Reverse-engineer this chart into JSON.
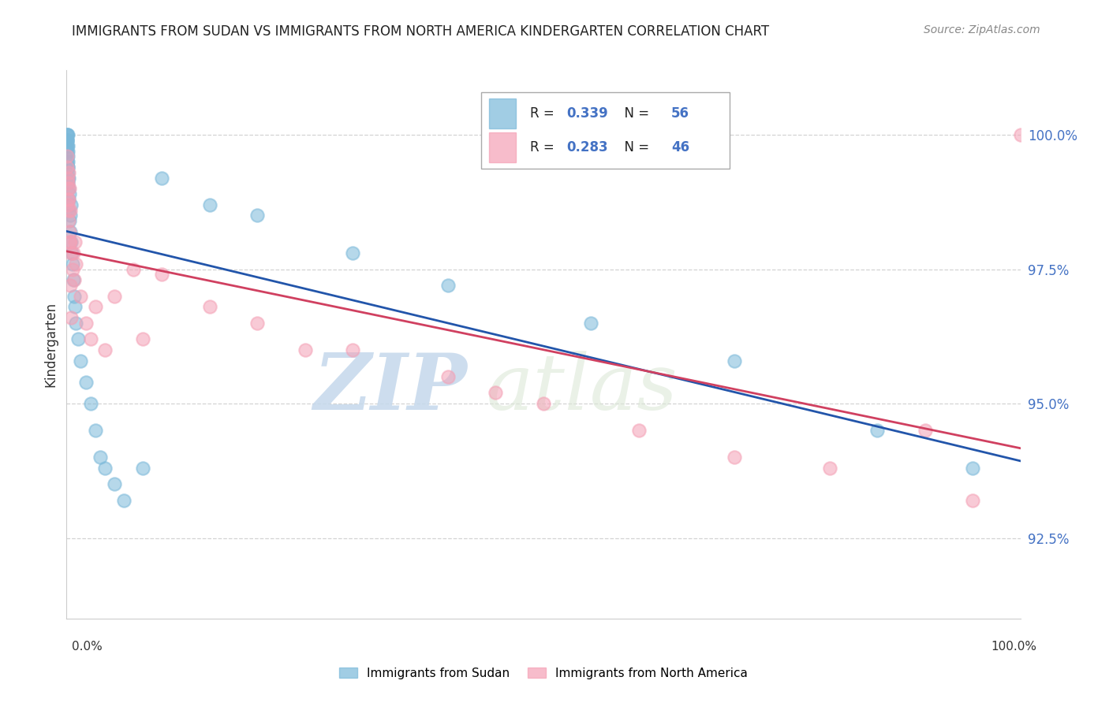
{
  "title": "IMMIGRANTS FROM SUDAN VS IMMIGRANTS FROM NORTH AMERICA KINDERGARTEN CORRELATION CHART",
  "source": "Source: ZipAtlas.com",
  "ylabel": "Kindergarten",
  "xmin": 0.0,
  "xmax": 100.0,
  "ymin": 91.0,
  "ymax": 101.2,
  "yticks": [
    92.5,
    95.0,
    97.5,
    100.0
  ],
  "ytick_labels": [
    "92.5%",
    "95.0%",
    "97.5%",
    "100.0%"
  ],
  "sudan_color": "#7ab8d9",
  "north_america_color": "#f4a0b5",
  "sudan_line_color": "#2255aa",
  "na_line_color": "#d04060",
  "sudan_R": 0.339,
  "sudan_N": 56,
  "north_america_R": 0.283,
  "north_america_N": 46,
  "watermark_zip": "ZIP",
  "watermark_atlas": "atlas",
  "legend_label_sudan": "Immigrants from Sudan",
  "legend_label_na": "Immigrants from North America",
  "sudan_x": [
    0.02,
    0.03,
    0.04,
    0.05,
    0.05,
    0.06,
    0.06,
    0.07,
    0.08,
    0.08,
    0.09,
    0.1,
    0.1,
    0.11,
    0.12,
    0.13,
    0.14,
    0.15,
    0.15,
    0.16,
    0.17,
    0.18,
    0.2,
    0.22,
    0.25,
    0.28,
    0.3,
    0.35,
    0.4,
    0.45,
    0.5,
    0.55,
    0.6,
    0.7,
    0.8,
    0.9,
    1.0,
    1.2,
    1.5,
    2.0,
    2.5,
    3.0,
    3.5,
    4.0,
    5.0,
    6.0,
    8.0,
    10.0,
    15.0,
    20.0,
    30.0,
    40.0,
    55.0,
    70.0,
    85.0,
    95.0
  ],
  "sudan_y": [
    100.0,
    100.0,
    99.9,
    99.8,
    99.9,
    99.7,
    100.0,
    99.8,
    99.6,
    99.9,
    99.5,
    99.7,
    100.0,
    99.4,
    99.6,
    99.3,
    99.5,
    99.2,
    99.8,
    99.1,
    99.4,
    99.0,
    98.8,
    99.2,
    98.6,
    98.4,
    98.9,
    98.5,
    98.2,
    98.7,
    98.0,
    97.8,
    97.6,
    97.3,
    97.0,
    96.8,
    96.5,
    96.2,
    95.8,
    95.4,
    95.0,
    94.5,
    94.0,
    93.8,
    93.5,
    93.2,
    93.8,
    99.2,
    98.7,
    98.5,
    97.8,
    97.2,
    96.5,
    95.8,
    94.5,
    93.8
  ],
  "na_x": [
    0.05,
    0.08,
    0.1,
    0.12,
    0.15,
    0.18,
    0.2,
    0.25,
    0.28,
    0.3,
    0.35,
    0.4,
    0.5,
    0.6,
    0.7,
    0.8,
    0.9,
    1.0,
    1.5,
    2.0,
    3.0,
    4.0,
    5.0,
    8.0,
    10.0,
    15.0,
    20.0,
    30.0,
    40.0,
    50.0,
    60.0,
    70.0,
    80.0,
    90.0,
    95.0,
    100.0,
    0.1,
    0.15,
    0.2,
    0.3,
    0.4,
    0.5,
    2.5,
    7.0,
    25.0,
    45.0
  ],
  "na_y": [
    99.6,
    99.4,
    99.2,
    98.8,
    99.0,
    98.6,
    98.8,
    98.4,
    99.0,
    98.2,
    98.6,
    98.0,
    97.8,
    97.5,
    97.8,
    97.3,
    98.0,
    97.6,
    97.0,
    96.5,
    96.8,
    96.0,
    97.0,
    96.2,
    97.4,
    96.8,
    96.5,
    96.0,
    95.5,
    95.0,
    94.5,
    94.0,
    93.8,
    94.5,
    93.2,
    100.0,
    99.1,
    98.7,
    99.3,
    98.0,
    97.2,
    96.6,
    96.2,
    97.5,
    96.0,
    95.2
  ]
}
